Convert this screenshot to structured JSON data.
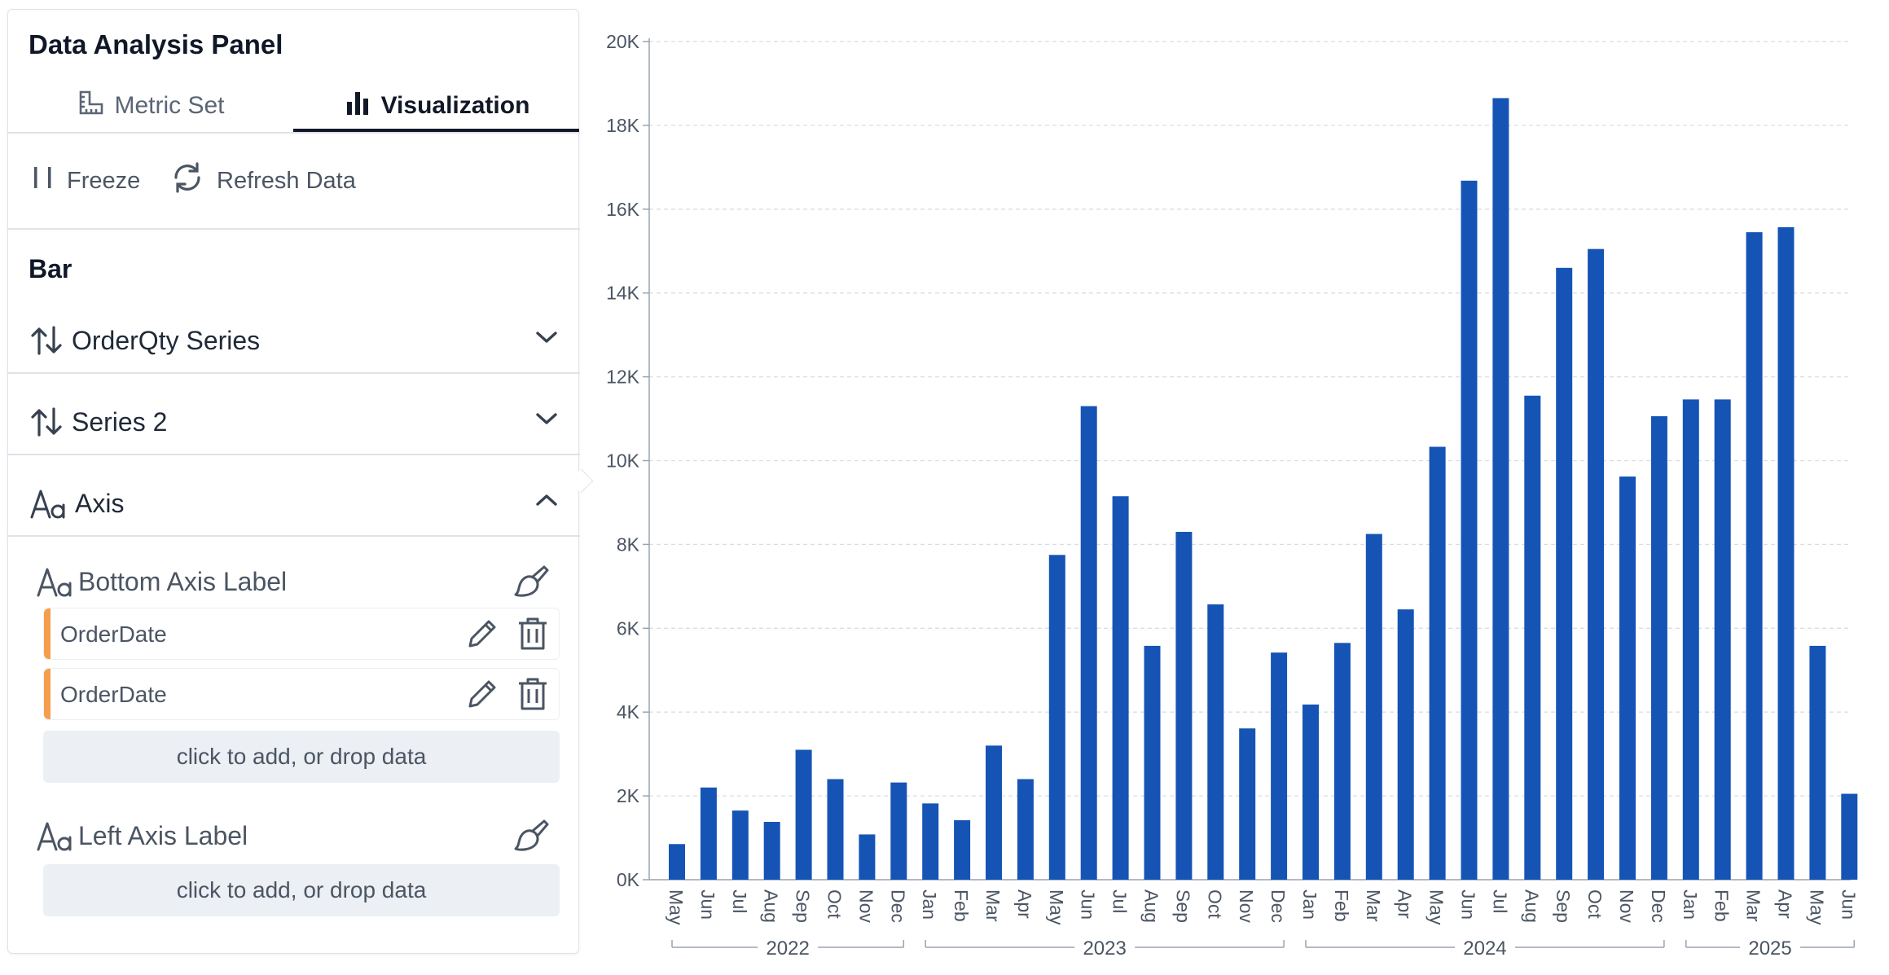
{
  "panel": {
    "title": "Data Analysis Panel",
    "tabs": [
      {
        "label": "Metric Set",
        "icon": "ruler-square-icon",
        "active": false
      },
      {
        "label": "Visualization",
        "icon": "bar-chart-icon",
        "active": true
      }
    ],
    "toolbar": {
      "freeze_label": "Freeze",
      "refresh_label": "Refresh Data"
    },
    "section_title": "Bar",
    "accordions": [
      {
        "label": "OrderQty Series",
        "icon": "sort-arrows-icon",
        "expanded": false
      },
      {
        "label": "Series 2",
        "icon": "sort-arrows-icon",
        "expanded": false
      },
      {
        "label": "Axis",
        "icon": "text-format-icon",
        "expanded": true
      }
    ],
    "axis": {
      "bottom_label": "Bottom Axis Label",
      "bottom_fields": [
        "OrderDate",
        "OrderDate"
      ],
      "dropzone_text": "click to add, or drop data",
      "left_label": "Left Axis Label",
      "left_dropzone_text": "click to add, or drop data"
    }
  },
  "colors": {
    "bar": "#1554b5",
    "field_stripe": "#f59d4c",
    "grid": "#d9dde3"
  },
  "chart_data": {
    "type": "bar",
    "ylim": [
      0,
      20000
    ],
    "yticks": [
      "0K",
      "2K",
      "4K",
      "6K",
      "8K",
      "10K",
      "12K",
      "14K",
      "16K",
      "18K",
      "20K"
    ],
    "grid": true,
    "categories": [
      "May",
      "Jun",
      "Jul",
      "Aug",
      "Sep",
      "Oct",
      "Nov",
      "Dec",
      "Jan",
      "Feb",
      "Mar",
      "Apr",
      "May",
      "Jun",
      "Jul",
      "Aug",
      "Sep",
      "Oct",
      "Nov",
      "Dec",
      "Jan",
      "Feb",
      "Mar",
      "Apr",
      "May",
      "Jun",
      "Jul",
      "Aug",
      "Sep",
      "Oct",
      "Nov",
      "Dec",
      "Jan",
      "Feb",
      "Mar",
      "Apr",
      "May",
      "Jun"
    ],
    "years": [
      {
        "label": "2022",
        "start": 0,
        "end": 7
      },
      {
        "label": "2023",
        "start": 8,
        "end": 19
      },
      {
        "label": "2024",
        "start": 20,
        "end": 31
      },
      {
        "label": "2025",
        "start": 32,
        "end": 37
      }
    ],
    "values": [
      850,
      2200,
      1650,
      1380,
      3100,
      2400,
      1080,
      2320,
      1820,
      1420,
      3200,
      2400,
      7750,
      11300,
      9150,
      5580,
      8300,
      6570,
      3610,
      5420,
      4180,
      5650,
      8250,
      6450,
      10330,
      16680,
      18650,
      11550,
      14600,
      15050,
      9620,
      11060,
      11460,
      11460,
      15450,
      15570,
      5580,
      2050
    ]
  }
}
